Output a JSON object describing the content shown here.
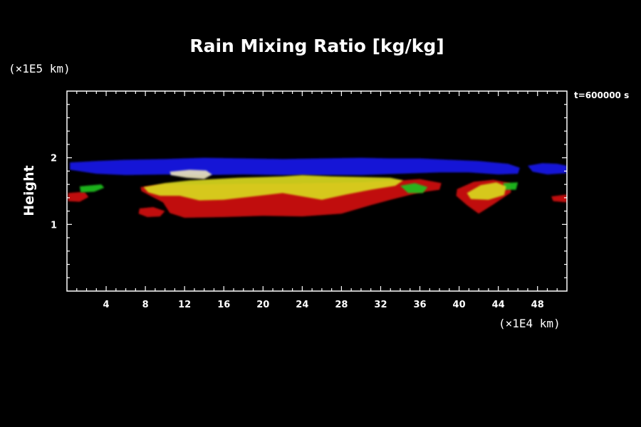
{
  "chart_data": {
    "type": "area",
    "title": "Rain Mixing Ratio [kg/kg]",
    "xlabel": "",
    "ylabel": "Height",
    "x_unit": "(×1E4 km)",
    "y_unit": "(×1E5 km)",
    "time_label": "t=600000 s",
    "xlim": [
      0,
      51
    ],
    "ylim": [
      0,
      3
    ],
    "xticks": [
      4,
      8,
      12,
      16,
      20,
      24,
      28,
      32,
      36,
      40,
      44,
      48
    ],
    "yticks": [
      1,
      2
    ],
    "x_minor_step": 1,
    "y_minor_step": 0.2,
    "grid": false,
    "regions": [
      {
        "color": "#1a1ae8",
        "outline": [
          [
            0.3,
            1.93
          ],
          [
            3,
            1.95
          ],
          [
            6,
            1.97
          ],
          [
            10,
            1.98
          ],
          [
            14,
            2.0
          ],
          [
            18,
            1.99
          ],
          [
            22,
            1.98
          ],
          [
            26,
            1.99
          ],
          [
            30,
            2.0
          ],
          [
            33,
            1.99
          ],
          [
            36,
            1.99
          ],
          [
            39,
            1.97
          ],
          [
            42,
            1.95
          ],
          [
            45,
            1.91
          ],
          [
            46.2,
            1.85
          ],
          [
            46,
            1.76
          ],
          [
            44,
            1.75
          ],
          [
            41,
            1.78
          ],
          [
            38,
            1.78
          ],
          [
            34,
            1.76
          ],
          [
            30,
            1.74
          ],
          [
            26,
            1.74
          ],
          [
            22,
            1.74
          ],
          [
            18,
            1.75
          ],
          [
            14,
            1.74
          ],
          [
            10,
            1.75
          ],
          [
            6,
            1.74
          ],
          [
            3,
            1.76
          ],
          [
            0.3,
            1.82
          ]
        ]
      },
      {
        "color": "#1a1ae8",
        "outline": [
          [
            47,
            1.88
          ],
          [
            48.5,
            1.92
          ],
          [
            50,
            1.91
          ],
          [
            51,
            1.88
          ],
          [
            51,
            1.77
          ],
          [
            49,
            1.75
          ],
          [
            47.5,
            1.79
          ]
        ]
      },
      {
        "color": "#d01010",
        "outline": [
          [
            0.1,
            1.47
          ],
          [
            1.8,
            1.49
          ],
          [
            2.2,
            1.41
          ],
          [
            1.3,
            1.34
          ],
          [
            0.1,
            1.35
          ]
        ]
      },
      {
        "color": "#d01010",
        "outline": [
          [
            7.5,
            1.56
          ],
          [
            10,
            1.6
          ],
          [
            14,
            1.6
          ],
          [
            18,
            1.61
          ],
          [
            22,
            1.61
          ],
          [
            26,
            1.62
          ],
          [
            30,
            1.63
          ],
          [
            34,
            1.66
          ],
          [
            36,
            1.68
          ],
          [
            38.2,
            1.62
          ],
          [
            38,
            1.52
          ],
          [
            36,
            1.48
          ],
          [
            33,
            1.37
          ],
          [
            31,
            1.29
          ],
          [
            28,
            1.16
          ],
          [
            24,
            1.12
          ],
          [
            20,
            1.13
          ],
          [
            16,
            1.11
          ],
          [
            12,
            1.1
          ],
          [
            10.5,
            1.17
          ],
          [
            9.8,
            1.33
          ],
          [
            8.5,
            1.43
          ],
          [
            7.6,
            1.5
          ]
        ]
      },
      {
        "color": "#d01010",
        "outline": [
          [
            7.4,
            1.24
          ],
          [
            8.8,
            1.26
          ],
          [
            10,
            1.2
          ],
          [
            9.5,
            1.12
          ],
          [
            8.2,
            1.11
          ],
          [
            7.3,
            1.16
          ]
        ]
      },
      {
        "color": "#d01010",
        "outline": [
          [
            39.8,
            1.53
          ],
          [
            41.5,
            1.64
          ],
          [
            43.5,
            1.67
          ],
          [
            45.2,
            1.62
          ],
          [
            45.3,
            1.48
          ],
          [
            43.5,
            1.3
          ],
          [
            42,
            1.16
          ],
          [
            40.8,
            1.29
          ],
          [
            39.7,
            1.43
          ]
        ]
      },
      {
        "color": "#d01010",
        "outline": [
          [
            49.4,
            1.42
          ],
          [
            51,
            1.45
          ],
          [
            51,
            1.33
          ],
          [
            49.6,
            1.35
          ]
        ]
      },
      {
        "color": "#20c020",
        "outline": [
          [
            1.3,
            1.57
          ],
          [
            3.5,
            1.6
          ],
          [
            3.8,
            1.55
          ],
          [
            2.8,
            1.49
          ],
          [
            1.4,
            1.48
          ]
        ]
      },
      {
        "color": "#20c020",
        "outline": [
          [
            34,
            1.58
          ],
          [
            35.5,
            1.62
          ],
          [
            36.8,
            1.56
          ],
          [
            36.3,
            1.47
          ],
          [
            34.8,
            1.47
          ]
        ]
      },
      {
        "color": "#20c020",
        "outline": [
          [
            44.5,
            1.62
          ],
          [
            46,
            1.63
          ],
          [
            45.8,
            1.52
          ],
          [
            44.6,
            1.52
          ]
        ]
      },
      {
        "color": "#d8d81c",
        "outline": [
          [
            7.8,
            1.56
          ],
          [
            10,
            1.62
          ],
          [
            12.5,
            1.66
          ],
          [
            15,
            1.68
          ],
          [
            17.5,
            1.7
          ],
          [
            20,
            1.71
          ],
          [
            22,
            1.72
          ],
          [
            24,
            1.74
          ],
          [
            27,
            1.72
          ],
          [
            30,
            1.71
          ],
          [
            33,
            1.7
          ],
          [
            34.3,
            1.66
          ],
          [
            33.5,
            1.58
          ],
          [
            31,
            1.52
          ],
          [
            28.5,
            1.45
          ],
          [
            26,
            1.37
          ],
          [
            24,
            1.42
          ],
          [
            22,
            1.47
          ],
          [
            19,
            1.42
          ],
          [
            16,
            1.37
          ],
          [
            13.5,
            1.36
          ],
          [
            11.5,
            1.43
          ],
          [
            9.5,
            1.43
          ],
          [
            8.3,
            1.48
          ]
        ]
      },
      {
        "color": "#d8d81c",
        "outline": [
          [
            40.8,
            1.47
          ],
          [
            42.2,
            1.59
          ],
          [
            43.8,
            1.63
          ],
          [
            44.8,
            1.57
          ],
          [
            44.6,
            1.44
          ],
          [
            43,
            1.37
          ],
          [
            41.2,
            1.38
          ]
        ]
      },
      {
        "color": "#e8e2bc",
        "outline": [
          [
            10.5,
            1.79
          ],
          [
            12.5,
            1.82
          ],
          [
            14.2,
            1.81
          ],
          [
            14.8,
            1.75
          ],
          [
            14,
            1.68
          ],
          [
            12.2,
            1.7
          ],
          [
            10.6,
            1.74
          ]
        ]
      }
    ]
  }
}
